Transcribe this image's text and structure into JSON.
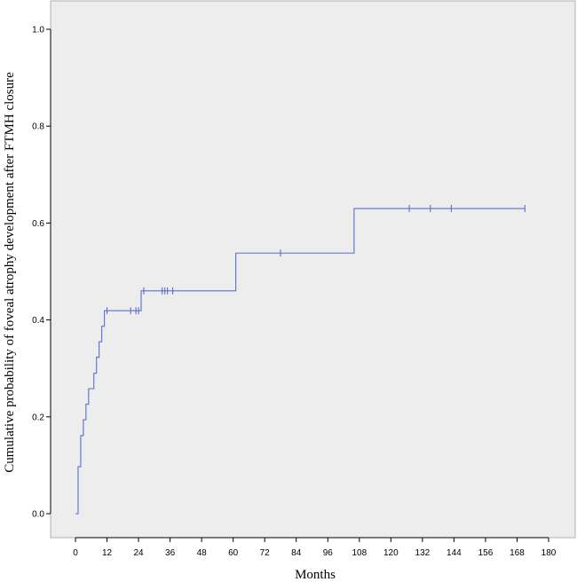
{
  "chart_data": {
    "type": "line",
    "style": "kaplan-meier step curve with censor marks",
    "xlabel": "Months",
    "ylabel": "Cumulative probability of foveal atrophy development after FTMH closure",
    "xlim": [
      0,
      180
    ],
    "ylim": [
      0,
      1
    ],
    "x_ticks": [
      0,
      12,
      24,
      36,
      48,
      60,
      72,
      84,
      96,
      108,
      120,
      132,
      144,
      156,
      168,
      180
    ],
    "y_ticks": [
      0.0,
      0.2,
      0.4,
      0.6,
      0.8,
      1.0
    ],
    "x_tick_labels": [
      "0",
      "12",
      "24",
      "36",
      "48",
      "60",
      "72",
      "84",
      "96",
      "108",
      "120",
      "132",
      "144",
      "156",
      "168",
      "180"
    ],
    "y_tick_labels": [
      "0.0",
      "0.2",
      "0.4",
      "0.6",
      "0.8",
      "1.0"
    ],
    "grid": false,
    "colors": {
      "plot_background": "#ededed",
      "line": "#5a6fcf",
      "axis": "#000000"
    },
    "series": [
      {
        "steps": [
          {
            "x": 0,
            "y": 0.0
          },
          {
            "x": 1,
            "y": 0.097
          },
          {
            "x": 2,
            "y": 0.161
          },
          {
            "x": 3,
            "y": 0.194
          },
          {
            "x": 4,
            "y": 0.226
          },
          {
            "x": 5,
            "y": 0.258
          },
          {
            "x": 7,
            "y": 0.29
          },
          {
            "x": 8,
            "y": 0.323
          },
          {
            "x": 9,
            "y": 0.355
          },
          {
            "x": 10,
            "y": 0.387
          },
          {
            "x": 11,
            "y": 0.419
          },
          {
            "x": 25,
            "y": 0.46
          },
          {
            "x": 61,
            "y": 0.538
          },
          {
            "x": 106,
            "y": 0.63
          },
          {
            "x": 171,
            "y": 0.63
          }
        ],
        "censored": [
          {
            "x": 12,
            "y": 0.419
          },
          {
            "x": 21,
            "y": 0.419
          },
          {
            "x": 23,
            "y": 0.419
          },
          {
            "x": 24,
            "y": 0.419
          },
          {
            "x": 26,
            "y": 0.46
          },
          {
            "x": 33,
            "y": 0.46
          },
          {
            "x": 34,
            "y": 0.46
          },
          {
            "x": 35,
            "y": 0.46
          },
          {
            "x": 37,
            "y": 0.46
          },
          {
            "x": 78,
            "y": 0.538
          },
          {
            "x": 127,
            "y": 0.63
          },
          {
            "x": 135,
            "y": 0.63
          },
          {
            "x": 143,
            "y": 0.63
          },
          {
            "x": 171,
            "y": 0.63
          }
        ]
      }
    ]
  }
}
